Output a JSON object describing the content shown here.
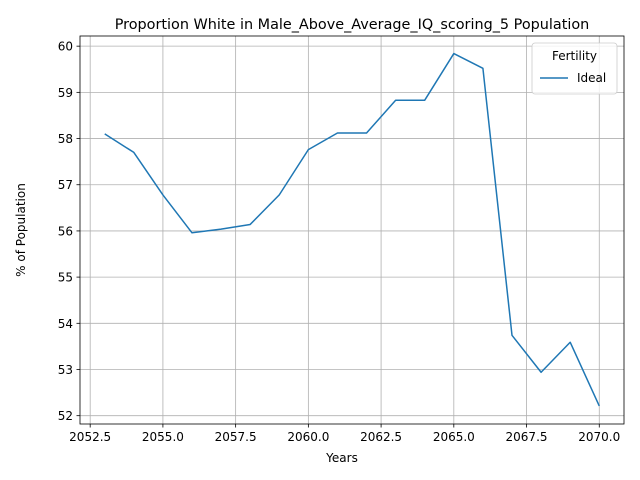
{
  "chart_data": {
    "type": "line",
    "title": "Proportion White in Male_Above_Average_IQ_scoring_5 Population",
    "xlabel": "Years",
    "ylabel": "% of Population",
    "xlim": [
      2052.15,
      2070.85
    ],
    "ylim": [
      51.82,
      60.22
    ],
    "xticks": [
      2052.5,
      2055.0,
      2057.5,
      2060.0,
      2062.5,
      2065.0,
      2067.5,
      2070.0
    ],
    "xtick_labels": [
      "2052.5",
      "2055.0",
      "2057.5",
      "2060.0",
      "2062.5",
      "2065.0",
      "2067.5",
      "2070.0"
    ],
    "yticks": [
      52,
      53,
      54,
      55,
      56,
      57,
      58,
      59,
      60
    ],
    "ytick_labels": [
      "52",
      "53",
      "54",
      "55",
      "56",
      "57",
      "58",
      "59",
      "60"
    ],
    "grid": true,
    "legend": {
      "title": "Fertility",
      "placement": "top-right"
    },
    "series": [
      {
        "name": "Ideal",
        "color": "#1f77b4",
        "x": [
          2053,
          2054,
          2055,
          2056,
          2057,
          2058,
          2059,
          2060,
          2061,
          2062,
          2063,
          2064,
          2065,
          2066,
          2067,
          2068,
          2069,
          2070
        ],
        "y": [
          58.1,
          57.7,
          56.78,
          55.96,
          56.04,
          56.14,
          56.78,
          57.76,
          58.12,
          58.12,
          58.83,
          58.83,
          59.84,
          59.52,
          53.74,
          52.94,
          53.59,
          52.21
        ]
      }
    ]
  }
}
